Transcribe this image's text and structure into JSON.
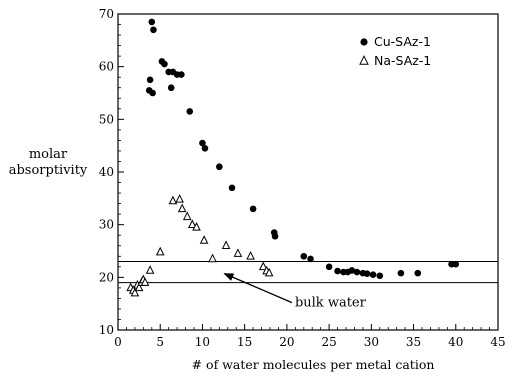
{
  "chart_data": {
    "type": "scatter",
    "title": "",
    "xlabel": "# of water molecules per metal cation",
    "ylabel": "molar absorptivity",
    "ylabel_lines": [
      "molar",
      "absorptivity"
    ],
    "xlim": [
      0,
      45
    ],
    "ylim": [
      10,
      70
    ],
    "x_ticks": [
      0,
      5,
      10,
      15,
      20,
      25,
      30,
      35,
      40,
      45
    ],
    "y_ticks": [
      10,
      20,
      30,
      40,
      50,
      60,
      70
    ],
    "grid": false,
    "legend_position": "top-right",
    "series": [
      {
        "name": "Cu-SAz-1",
        "marker": "filled-circle",
        "color": "#000000",
        "points": [
          [
            4.0,
            68.5
          ],
          [
            4.2,
            67.0
          ],
          [
            3.8,
            57.5
          ],
          [
            3.7,
            55.5
          ],
          [
            4.1,
            55.0
          ],
          [
            5.2,
            61.0
          ],
          [
            5.5,
            60.5
          ],
          [
            6.0,
            59.0
          ],
          [
            6.3,
            56.0
          ],
          [
            6.5,
            59.0
          ],
          [
            7.0,
            58.5
          ],
          [
            7.5,
            58.5
          ],
          [
            8.5,
            51.5
          ],
          [
            10.0,
            45.5
          ],
          [
            10.3,
            44.5
          ],
          [
            12.0,
            41.0
          ],
          [
            13.5,
            37.0
          ],
          [
            16.0,
            33.0
          ],
          [
            18.5,
            28.5
          ],
          [
            18.6,
            27.8
          ],
          [
            22.0,
            24.0
          ],
          [
            22.8,
            23.5
          ],
          [
            25.0,
            22.0
          ],
          [
            26.0,
            21.2
          ],
          [
            26.7,
            21.0
          ],
          [
            27.2,
            21.0
          ],
          [
            27.7,
            21.3
          ],
          [
            28.3,
            21.0
          ],
          [
            29.0,
            20.8
          ],
          [
            29.5,
            20.7
          ],
          [
            30.2,
            20.5
          ],
          [
            31.0,
            20.3
          ],
          [
            33.5,
            20.8
          ],
          [
            35.5,
            20.8
          ],
          [
            39.5,
            22.5
          ],
          [
            40.0,
            22.5
          ]
        ]
      },
      {
        "name": "Na-SAz-1",
        "marker": "open-triangle",
        "color": "#000000",
        "points": [
          [
            1.5,
            18.0
          ],
          [
            1.8,
            17.5
          ],
          [
            2.0,
            17.0
          ],
          [
            2.3,
            18.5
          ],
          [
            2.5,
            18.0
          ],
          [
            2.8,
            19.0
          ],
          [
            3.0,
            19.5
          ],
          [
            3.2,
            19.0
          ],
          [
            3.8,
            21.3
          ],
          [
            5.0,
            24.8
          ],
          [
            6.5,
            34.5
          ],
          [
            7.3,
            34.8
          ],
          [
            7.6,
            33.0
          ],
          [
            8.2,
            31.5
          ],
          [
            8.8,
            30.0
          ],
          [
            9.3,
            29.5
          ],
          [
            10.2,
            27.0
          ],
          [
            11.2,
            23.5
          ],
          [
            12.8,
            26.0
          ],
          [
            14.2,
            24.5
          ],
          [
            15.7,
            24.0
          ],
          [
            17.2,
            22.0
          ],
          [
            17.6,
            21.2
          ],
          [
            17.9,
            20.8
          ]
        ]
      }
    ],
    "annotations": [
      {
        "type": "band",
        "label": "bulk water",
        "y_range": [
          19.0,
          23.0
        ],
        "x_range": [
          0,
          45
        ]
      }
    ]
  }
}
